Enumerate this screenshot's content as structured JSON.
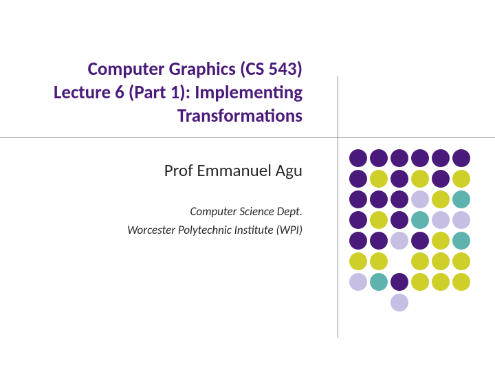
{
  "title": {
    "line1": "Computer Graphics (CS 543)",
    "line2": "Lecture 6 (Part 1): Implementing",
    "line3": "Transformations",
    "color": "#4a1a7a",
    "fontsize": 27
  },
  "subtitle": {
    "professor": "Prof Emmanuel Agu",
    "department": "Computer Science Dept.",
    "institution": "Worcester Polytechnic Institute (WPI)",
    "color": "#262626"
  },
  "divider": {
    "color": "#888888"
  },
  "dots": {
    "rows": 8,
    "cols": 6,
    "diameter": 26,
    "gap": 4,
    "palette": {
      "purple": "#4a1a7a",
      "yellow": "#cfcf2a",
      "lightpurple": "#c7bfe3",
      "teal": "#5fb3ae",
      "white": "#ffffff"
    },
    "grid": [
      [
        "purple",
        "purple",
        "purple",
        "purple",
        "purple",
        "purple"
      ],
      [
        "purple",
        "yellow",
        "purple",
        "yellow",
        "purple",
        "yellow"
      ],
      [
        "purple",
        "purple",
        "purple",
        "lightpurple",
        "yellow",
        "teal"
      ],
      [
        "purple",
        "yellow",
        "purple",
        "teal",
        "lightpurple",
        "lightpurple"
      ],
      [
        "purple",
        "purple",
        "lightpurple",
        "purple",
        "yellow",
        "teal"
      ],
      [
        "yellow",
        "yellow",
        "white",
        "yellow",
        "yellow",
        "yellow"
      ],
      [
        "lightpurple",
        "teal",
        "purple",
        "yellow",
        "yellow",
        "yellow"
      ],
      [
        "white",
        "white",
        "lightpurple",
        "white",
        "white",
        "white"
      ]
    ]
  }
}
